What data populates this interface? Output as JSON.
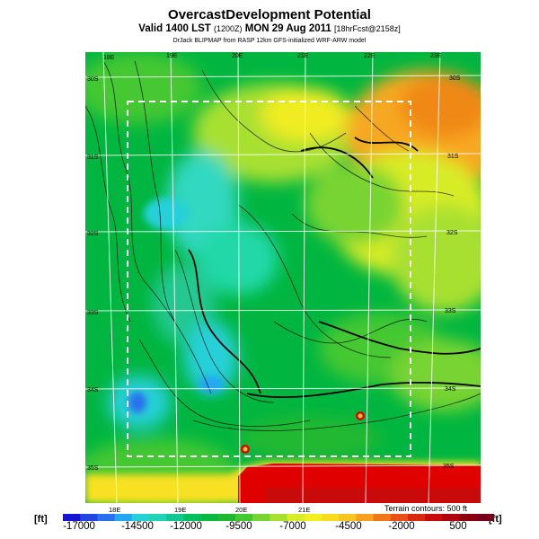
{
  "title": "OvercastDevelopment Potential",
  "subtitle_main": "Valid 1400 LST ",
  "subtitle_z": "(1200Z)",
  "subtitle_mid": " MON 29 Aug 2011 ",
  "subtitle_fcst": "[18hrFcst@2158z]",
  "credit": "DrJack BLIPMAP from RASP 12km GFS-initialized WRF-ARW model",
  "top_lon_labels": [
    "18E",
    "19E",
    "20E",
    "21E",
    "22E",
    "23E"
  ],
  "bottom_lon_labels": [
    "18E",
    "19E",
    "20E",
    "21E"
  ],
  "left_lat_labels": [
    "30S",
    "31S",
    "32S",
    "33S",
    "34S",
    "35S"
  ],
  "right_lat_labels": [
    "30S",
    "31S",
    "32S",
    "33S",
    "34S",
    "35S"
  ],
  "terrain_note": "Terrain contours: 500 ft",
  "unit_left": "[ft]",
  "unit_right": "[ft]",
  "colorbar_ticks": [
    "-17000",
    "-14500",
    "-12000",
    "-9500",
    "-7000",
    "-4500",
    "-2000",
    "500"
  ],
  "colorbar_colors": [
    "#1515d0",
    "#2244e0",
    "#2a70ee",
    "#22a8f2",
    "#25d0d8",
    "#20d2b8",
    "#10c890",
    "#00bf60",
    "#08b840",
    "#20b830",
    "#44c830",
    "#78d430",
    "#a8e030",
    "#d8ec28",
    "#f2f020",
    "#f8dc20",
    "#f8c420",
    "#f8a020",
    "#f07818",
    "#e85018",
    "#d82810",
    "#c80a0a",
    "#b00010",
    "#8c0010",
    "#78001a"
  ],
  "colors": {
    "background": "#00b640",
    "high": "#f8e020",
    "orange": "#f7a020",
    "red": "#e00000",
    "cyan": "#30d8c0",
    "box": "#ffffff"
  }
}
